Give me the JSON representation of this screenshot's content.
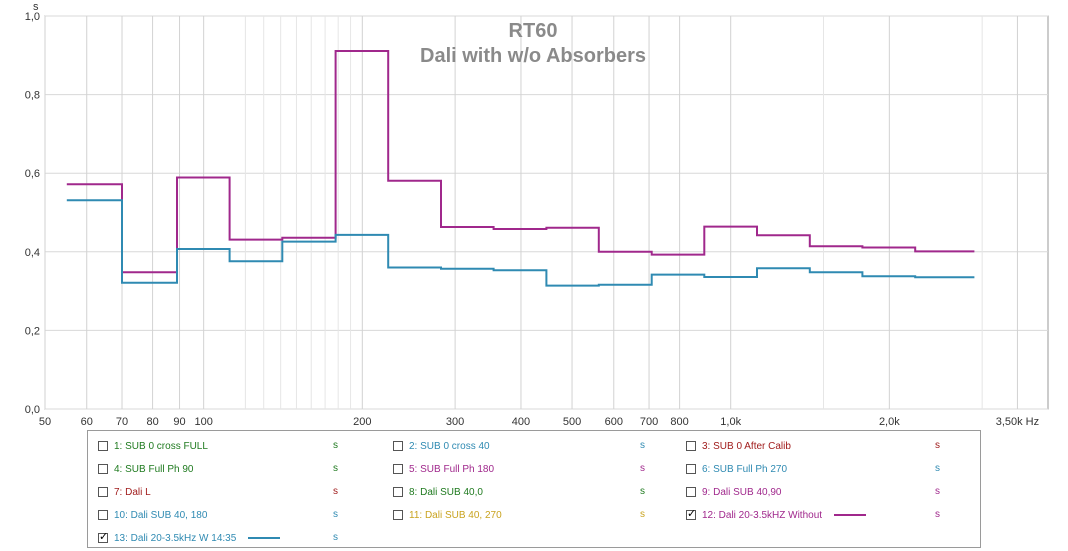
{
  "chart_data": {
    "type": "line",
    "title": "RT60",
    "subtitle": "Dali with w/o Absorbers",
    "ylabel": "s",
    "xlabel": "Hz",
    "xscale": "log",
    "xlim": [
      50,
      4000
    ],
    "ylim": [
      0,
      1.0
    ],
    "grid": true,
    "x_ticks": [
      {
        "v": 50,
        "label": "50"
      },
      {
        "v": 60,
        "label": "60"
      },
      {
        "v": 70,
        "label": "70"
      },
      {
        "v": 80,
        "label": "80"
      },
      {
        "v": 90,
        "label": "90"
      },
      {
        "v": 100,
        "label": "100"
      },
      {
        "v": 200,
        "label": "200"
      },
      {
        "v": 300,
        "label": "300"
      },
      {
        "v": 400,
        "label": "400"
      },
      {
        "v": 500,
        "label": "500"
      },
      {
        "v": 600,
        "label": "600"
      },
      {
        "v": 700,
        "label": "700"
      },
      {
        "v": 800,
        "label": "800"
      },
      {
        "v": 1000,
        "label": "1,0k"
      },
      {
        "v": 2000,
        "label": "2,0k"
      },
      {
        "v": 3500,
        "label": "3,50k Hz"
      }
    ],
    "x_minor_grid": [
      120,
      130,
      140,
      150,
      160,
      170,
      180,
      190,
      1500,
      3000
    ],
    "y_ticks": [
      {
        "v": 0,
        "label": "0,0"
      },
      {
        "v": 0.2,
        "label": "0,2"
      },
      {
        "v": 0.4,
        "label": "0,4"
      },
      {
        "v": 0.6,
        "label": "0,6"
      },
      {
        "v": 0.8,
        "label": "0,8"
      },
      {
        "v": 1.0,
        "label": "1,0"
      }
    ],
    "series": [
      {
        "name": "12: Dali 20-3.5kHZ Without",
        "color": "#a0288c",
        "steps": [
          [
            55,
            70,
            0.572
          ],
          [
            70,
            89,
            0.348
          ],
          [
            89,
            112,
            0.589
          ],
          [
            112,
            141,
            0.431
          ],
          [
            141,
            178,
            0.436
          ],
          [
            178,
            224,
            0.911
          ],
          [
            224,
            282,
            0.581
          ],
          [
            282,
            355,
            0.463
          ],
          [
            355,
            447,
            0.458
          ],
          [
            447,
            562,
            0.461
          ],
          [
            562,
            708,
            0.4
          ],
          [
            708,
            891,
            0.393
          ],
          [
            891,
            1122,
            0.464
          ],
          [
            1122,
            1413,
            0.442
          ],
          [
            1413,
            1778,
            0.414
          ],
          [
            1778,
            2239,
            0.411
          ],
          [
            2239,
            2900,
            0.401
          ]
        ]
      },
      {
        "name": "13: Dali 20-3.5kHz W 14:35",
        "color": "#2f8ab2",
        "steps": [
          [
            55,
            70,
            0.531
          ],
          [
            70,
            89,
            0.321
          ],
          [
            89,
            112,
            0.407
          ],
          [
            112,
            141,
            0.376
          ],
          [
            141,
            178,
            0.426
          ],
          [
            178,
            224,
            0.443
          ],
          [
            224,
            282,
            0.36
          ],
          [
            282,
            355,
            0.357
          ],
          [
            355,
            447,
            0.353
          ],
          [
            447,
            562,
            0.314
          ],
          [
            562,
            708,
            0.316
          ],
          [
            708,
            891,
            0.342
          ],
          [
            891,
            1122,
            0.336
          ],
          [
            1122,
            1413,
            0.358
          ],
          [
            1413,
            1778,
            0.348
          ],
          [
            1778,
            2239,
            0.338
          ],
          [
            2239,
            2900,
            0.335
          ]
        ]
      }
    ]
  },
  "legend": {
    "items": [
      {
        "label": "1: SUB 0 cross FULL",
        "unit": "s",
        "checked": false,
        "color": "#1f7a1f",
        "unit_color": "#1f7a1f",
        "swatch": ""
      },
      {
        "label": "2: SUB 0 cross 40",
        "unit": "s",
        "checked": false,
        "color": "#2f8ab2",
        "unit_color": "#2f8ab2",
        "swatch": ""
      },
      {
        "label": "3: SUB 0 After Calib",
        "unit": "s",
        "checked": false,
        "color": "#a01c1c",
        "unit_color": "#a01c1c",
        "swatch": ""
      },
      {
        "label": "4: SUB Full Ph 90",
        "unit": "s",
        "checked": false,
        "color": "#1f7a1f",
        "unit_color": "#1f7a1f",
        "swatch": ""
      },
      {
        "label": "5: SUB Full Ph 180",
        "unit": "s",
        "checked": false,
        "color": "#a0288c",
        "unit_color": "#a0288c",
        "swatch": ""
      },
      {
        "label": "6: SUB Full Ph 270",
        "unit": "s",
        "checked": false,
        "color": "#2f8ab2",
        "unit_color": "#2f8ab2",
        "swatch": ""
      },
      {
        "label": "7: Dali L",
        "unit": "s",
        "checked": false,
        "color": "#a01c1c",
        "unit_color": "#a01c1c",
        "swatch": ""
      },
      {
        "label": "8: Dali SUB 40,0",
        "unit": "s",
        "checked": false,
        "color": "#1f7a1f",
        "unit_color": "#1f7a1f",
        "swatch": ""
      },
      {
        "label": "9: Dali SUB 40,90",
        "unit": "s",
        "checked": false,
        "color": "#a0288c",
        "unit_color": "#a0288c",
        "swatch": ""
      },
      {
        "label": "10: Dali SUB 40, 180",
        "unit": "s",
        "checked": false,
        "color": "#2f8ab2",
        "unit_color": "#2f8ab2",
        "swatch": ""
      },
      {
        "label": "11: Dali SUB 40, 270",
        "unit": "s",
        "checked": false,
        "color": "#c9a31f",
        "unit_color": "#c9a31f",
        "swatch": ""
      },
      {
        "label": "12: Dali 20-3.5kHZ Without",
        "unit": "s",
        "checked": true,
        "color": "#a0288c",
        "unit_color": "#a0288c",
        "swatch": "#a0288c"
      },
      {
        "label": "13: Dali 20-3.5kHz W 14:35",
        "unit": "s",
        "checked": true,
        "color": "#2f8ab2",
        "unit_color": "#2f8ab2",
        "swatch": "#2f8ab2"
      }
    ]
  }
}
